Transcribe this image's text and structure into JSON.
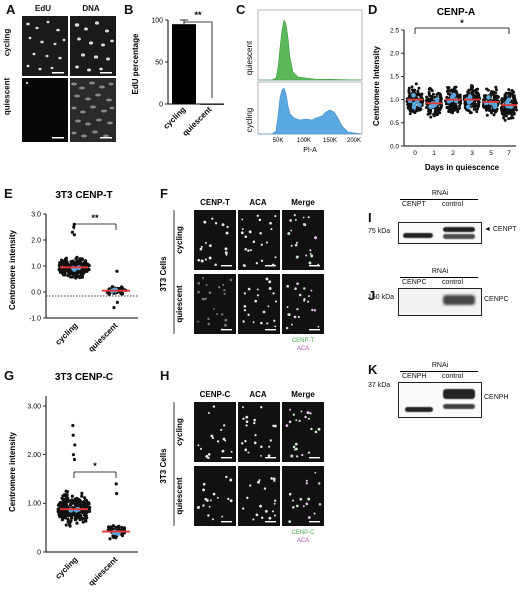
{
  "panels": {
    "A": {
      "label": "A",
      "col1": "EdU",
      "col2": "DNA",
      "row1": "cycling",
      "row2": "quiescent"
    },
    "B": {
      "label": "B",
      "ylabel": "EdU percentage",
      "yticks": [
        "0",
        "50",
        "100"
      ],
      "xcats": [
        "cycling",
        "quiescent"
      ],
      "sig": "**"
    },
    "C": {
      "label": "C",
      "track1": "quiescent",
      "track2": "cycling",
      "xlabel": "PI-A",
      "xticks": [
        "50K",
        "100K",
        "150K",
        "200K"
      ],
      "color1": "#5bb85b",
      "color2": "#5aa8e0"
    },
    "D": {
      "label": "D",
      "title": "CENP-A",
      "ylabel": "Centromere Intensity",
      "xlabel": "Days in quiescence",
      "days": [
        "0",
        "1",
        "2",
        "3",
        "5",
        "7"
      ],
      "yticks": [
        "0.0",
        "0.5",
        "1.0",
        "1.5",
        "2.0",
        "2.5"
      ],
      "sig": "*"
    },
    "E": {
      "label": "E",
      "title": "3T3 CENP-T",
      "ylabel": "Centromere intensity",
      "yticks": [
        "-1.0",
        "0.0",
        "1.0",
        "2.0",
        "3.0"
      ],
      "xcats": [
        "cycling",
        "quiescent"
      ],
      "sig": "**"
    },
    "F": {
      "label": "F",
      "cols": [
        "CENP-T",
        "ACA",
        "Merge"
      ],
      "row1": "cycling",
      "row2": "quiescent",
      "side": "3T3 Cells",
      "legend1": "CENP-T",
      "legend2": "ACA"
    },
    "G": {
      "label": "G",
      "title": "3T3 CENP-C",
      "ylabel": "Centromere intensity",
      "yticks": [
        "0",
        "1.00",
        "2.00",
        "3.00"
      ],
      "xcats": [
        "cycling",
        "quiescent"
      ],
      "sig": "*"
    },
    "H": {
      "label": "H",
      "cols": [
        "CENP-C",
        "ACA",
        "Merge"
      ],
      "row1": "cycling",
      "row2": "quiescent",
      "side": "3T3 Cells",
      "legend1": "CENP-C",
      "legend2": "ACA"
    },
    "I": {
      "label": "I",
      "rnai": "RNAi",
      "lane1": "CENPT",
      "lane2": "control",
      "marker": "75 kDa",
      "protein": "◄ CENPT"
    },
    "J": {
      "label": "J",
      "rnai": "RNAi",
      "lane1": "CENPC",
      "lane2": "control",
      "marker": "150 kDa",
      "protein": "CENPC"
    },
    "K": {
      "label": "K",
      "rnai": "RNAi",
      "lane1": "CENPH",
      "lane2": "control",
      "marker": "37 kDa",
      "protein": "CENPH"
    }
  },
  "chart_data": [
    {
      "type": "bar",
      "categories": [
        "cycling",
        "quiescent"
      ],
      "values": [
        95,
        0
      ],
      "ylabel": "EdU percentage",
      "ylim": [
        0,
        100
      ]
    },
    {
      "type": "scatter",
      "title": "CENP-A",
      "xlabel": "Days in quiescence",
      "ylabel": "Centromere Intensity",
      "categories": [
        "0",
        "1",
        "2",
        "3",
        "5",
        "7"
      ],
      "medians": [
        1.0,
        0.92,
        1.0,
        1.0,
        0.95,
        0.88
      ],
      "ylim": [
        0,
        2.5
      ]
    },
    {
      "type": "scatter",
      "title": "3T3 CENP-T",
      "ylabel": "Centromere intensity",
      "categories": [
        "cycling",
        "quiescent"
      ],
      "medians": [
        0.95,
        0.05
      ],
      "ylim": [
        -1,
        3
      ]
    },
    {
      "type": "scatter",
      "title": "3T3 CENP-C",
      "ylabel": "Centromere intensity",
      "categories": [
        "cycling",
        "quiescent"
      ],
      "medians": [
        0.88,
        0.42
      ],
      "ylim": [
        0,
        3
      ]
    }
  ]
}
